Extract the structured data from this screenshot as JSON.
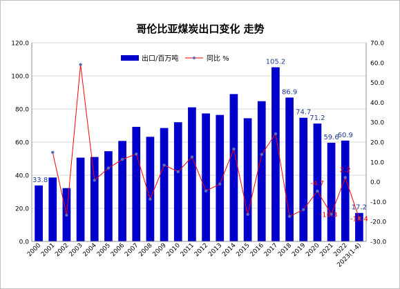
{
  "chart_data": {
    "type": "bar",
    "title": "哥伦比亚煤炭出口变化 走势",
    "categories": [
      "2000",
      "2001",
      "2002",
      "2003",
      "2004",
      "2005",
      "2006",
      "2007",
      "2008",
      "2009",
      "2010",
      "2011",
      "2012",
      "2013",
      "2014",
      "2015",
      "2016",
      "2017",
      "2018",
      "2019",
      "2020",
      "2021",
      "2022",
      "2023(1-4)"
    ],
    "series": [
      {
        "name": "出口/百万吨",
        "kind": "bar",
        "axis": "left",
        "color": "#0000CC",
        "values": [
          33.8,
          38.6,
          32.2,
          50.6,
          51.0,
          54.5,
          60.7,
          69.2,
          63.2,
          68.5,
          72.0,
          81.0,
          77.3,
          76.4,
          89.0,
          74.4,
          84.7,
          105.2,
          86.9,
          74.7,
          71.2,
          59.6,
          60.9,
          17.2
        ]
      },
      {
        "name": "同比 %",
        "kind": "line",
        "axis": "right",
        "color": "#FF0000",
        "marker_color": "#5B6FB5",
        "values": [
          null,
          14.8,
          -16.8,
          59.0,
          0.8,
          6.9,
          11.3,
          14.0,
          -8.7,
          8.4,
          5.1,
          12.5,
          -4.6,
          -1.1,
          16.5,
          -16.4,
          13.8,
          24.2,
          -17.4,
          -14.0,
          -4.7,
          -16.3,
          2.2,
          -18.4
        ]
      }
    ],
    "data_labels": [
      {
        "category": "2000",
        "text": "33.8",
        "color": "#1F3A93",
        "series": "bar"
      },
      {
        "category": "2017",
        "text": "105.2",
        "color": "#1F3A93",
        "series": "bar"
      },
      {
        "category": "2018",
        "text": "86.9",
        "color": "#1F3A93",
        "series": "bar"
      },
      {
        "category": "2019",
        "text": "74.7",
        "color": "#1F3A93",
        "series": "bar"
      },
      {
        "category": "2020",
        "text": "71.2",
        "color": "#1F3A93",
        "series": "bar"
      },
      {
        "category": "2021",
        "text": "59.6",
        "color": "#1F3A93",
        "series": "bar"
      },
      {
        "category": "2022",
        "text": "60.9",
        "color": "#1F3A93",
        "series": "bar"
      },
      {
        "category": "2023(1-4)",
        "text": "17.2",
        "color": "#1F3A93",
        "series": "bar"
      },
      {
        "category": "2020",
        "text": "-4.7",
        "color": "#FF0000",
        "series": "line"
      },
      {
        "category": "2021",
        "text": "-16.3",
        "color": "#FF0000",
        "series": "line"
      },
      {
        "category": "2022",
        "text": "2.2",
        "color": "#FF0000",
        "series": "line"
      },
      {
        "category": "2023(1-4)",
        "text": "-18.4",
        "color": "#FF0000",
        "series": "line"
      }
    ],
    "y_left": {
      "min": 0,
      "max": 120,
      "step": 20,
      "tick_labels": [
        "0.0",
        "20.0",
        "40.0",
        "60.0",
        "80.0",
        "100.0",
        "120.0"
      ]
    },
    "y_right": {
      "min": -30,
      "max": 70,
      "step": 10,
      "tick_labels": [
        "-30.0",
        "-20.0",
        "-10.0",
        "0.0",
        "10.0",
        "20.0",
        "30.0",
        "40.0",
        "50.0",
        "60.0",
        "70.0"
      ]
    },
    "grid": true,
    "legend_position": "top-center"
  }
}
